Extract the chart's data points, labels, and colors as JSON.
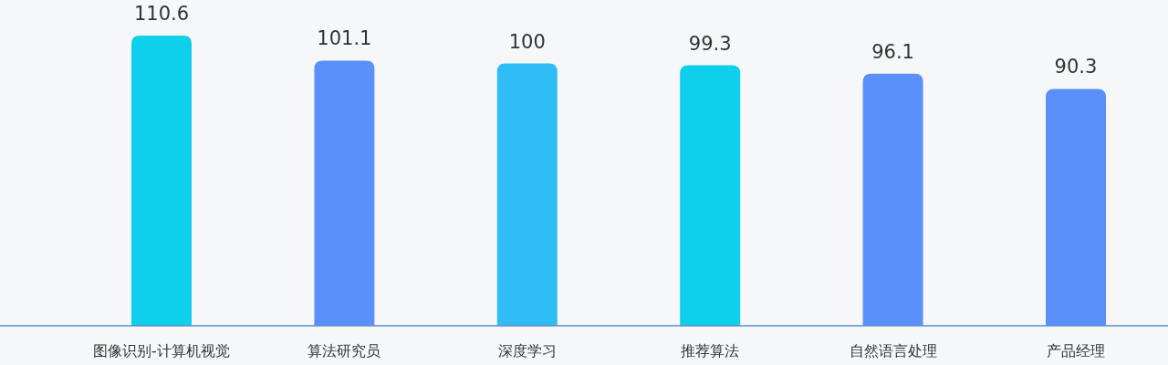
{
  "chart_data": {
    "type": "bar",
    "categories": [
      "图像识别-计算机视觉",
      "算法研究员",
      "深度学习",
      "推荐算法",
      "自然语言处理",
      "产品经理"
    ],
    "values": [
      110.6,
      101.1,
      100,
      99.3,
      96.1,
      90.3
    ],
    "colors": [
      "#0fd0ea",
      "#5b8ff9",
      "#30bdf6",
      "#0fd0ea",
      "#5b8ff9",
      "#5b8ff9"
    ],
    "data_labels": true
  }
}
